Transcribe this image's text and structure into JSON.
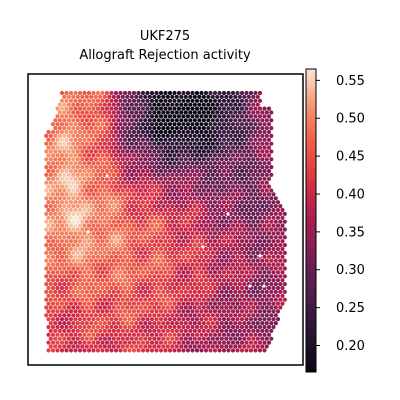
{
  "chart_data": {
    "type": "heatmap",
    "subtype": "spatial-spot-map",
    "title": "UKF275",
    "subtitle": "Allograft Rejection activity",
    "xlabel": "",
    "ylabel": "",
    "colormap": "rocket",
    "colorbar": {
      "min": 0.165,
      "max": 0.565,
      "ticks": [
        0.2,
        0.25,
        0.3,
        0.35,
        0.4,
        0.45,
        0.5,
        0.55
      ],
      "tick_labels": [
        "0.20",
        "0.25",
        "0.30",
        "0.35",
        "0.40",
        "0.45",
        "0.50",
        "0.55"
      ],
      "placement": "right"
    },
    "grid": false,
    "legend": "none",
    "spot_colors": {
      "missing": "#ffffff"
    },
    "spatial_pattern": [
      {
        "region": "top-center",
        "value": 0.18
      },
      {
        "region": "upper-middle",
        "value": 0.27
      },
      {
        "region": "upper-left",
        "value": 0.5
      },
      {
        "region": "left",
        "value": 0.48
      },
      {
        "region": "center",
        "value": 0.4
      },
      {
        "region": "right",
        "value": 0.35
      },
      {
        "region": "bottom",
        "value": 0.38
      }
    ]
  }
}
